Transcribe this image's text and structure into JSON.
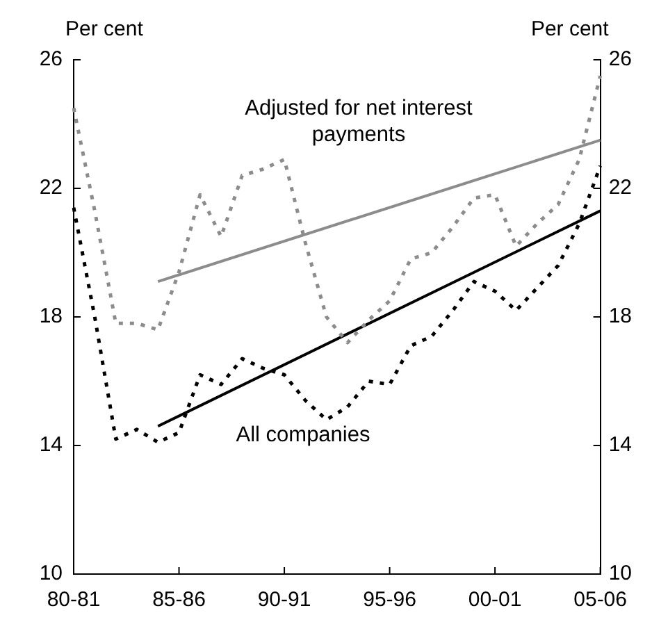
{
  "chart_data": {
    "type": "line",
    "ylabel": "Per cent",
    "y2label": "Per cent",
    "categories": [
      "80-81",
      null,
      null,
      null,
      null,
      "85-86",
      null,
      null,
      null,
      null,
      "90-91",
      null,
      null,
      null,
      null,
      "95-96",
      null,
      null,
      null,
      null,
      "00-01",
      null,
      null,
      null,
      null,
      "05-06"
    ],
    "series": [
      {
        "color": "#8c8c8c",
        "line_style": "dotted",
        "values": [
          24.5,
          21.3,
          17.8,
          17.8,
          17.6,
          19.4,
          21.8,
          20.5,
          22.4,
          22.6,
          22.9,
          20.3,
          18.0,
          17.2,
          17.9,
          18.5,
          19.8,
          20.0,
          20.8,
          21.7,
          21.8,
          20.2,
          20.9,
          21.5,
          22.9,
          25.5
        ]
      },
      {
        "color": "#000000",
        "line_style": "dotted",
        "values": [
          21.4,
          18.0,
          14.2,
          14.5,
          14.1,
          14.4,
          16.2,
          15.9,
          16.7,
          16.4,
          16.2,
          15.4,
          14.8,
          15.2,
          16.0,
          15.9,
          17.1,
          17.4,
          18.2,
          19.1,
          18.8,
          18.2,
          18.9,
          19.6,
          20.9,
          22.7
        ]
      },
      {
        "color": "#8c8c8c",
        "line_style": "solid",
        "values": [
          null,
          null,
          null,
          null,
          19.1,
          null,
          null,
          null,
          null,
          null,
          null,
          null,
          null,
          null,
          null,
          null,
          null,
          null,
          null,
          null,
          null,
          null,
          null,
          null,
          null,
          23.5
        ]
      },
      {
        "color": "#000000",
        "line_style": "solid",
        "values": [
          null,
          null,
          null,
          null,
          14.6,
          null,
          null,
          null,
          null,
          null,
          null,
          null,
          null,
          null,
          null,
          null,
          null,
          null,
          null,
          null,
          null,
          null,
          null,
          null,
          null,
          21.3
        ]
      }
    ],
    "ylim": [
      10,
      26
    ],
    "yticks": [
      10,
      14,
      18,
      22,
      26
    ],
    "y2lim": [
      10,
      26
    ],
    "y2ticks": [
      10,
      14,
      18,
      22,
      26
    ],
    "grid": false,
    "legend": false,
    "marker": "none",
    "annotations": [
      "Adjusted for net interest payments",
      "All companies"
    ]
  }
}
